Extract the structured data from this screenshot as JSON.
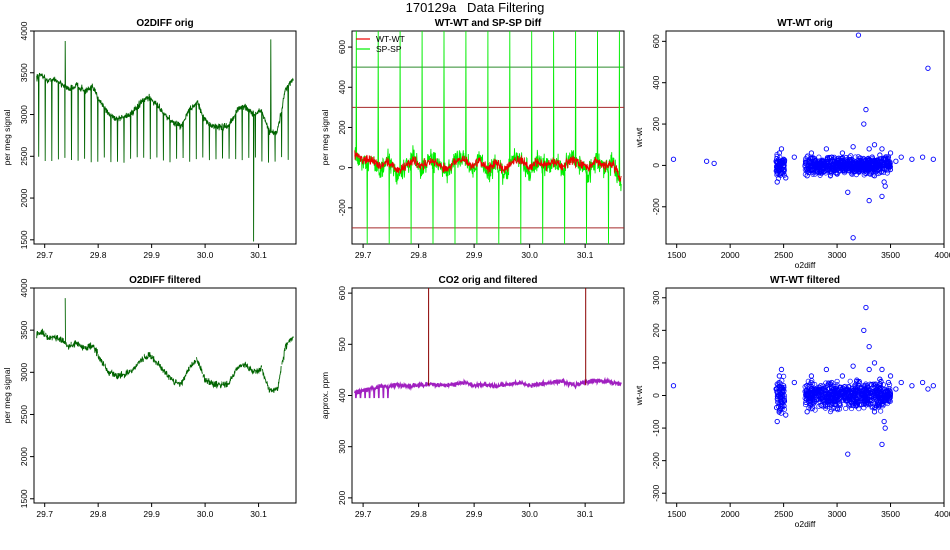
{
  "page": {
    "title": "170129a   Data Filtering"
  },
  "chart_data": [
    {
      "id": "p1",
      "type": "line",
      "title": "O2DIFF orig",
      "xlabel": "",
      "ylabel": "per meg signal",
      "xlim": [
        29.68,
        30.17
      ],
      "ylim": [
        1450,
        4000
      ],
      "xticks": [
        "29.7",
        "29.8",
        "29.9",
        "30.0",
        "30.1"
      ],
      "yticks": [
        "1500",
        "2000",
        "2500",
        "3000",
        "3500",
        "4000"
      ],
      "series": [
        {
          "color": "#006400",
          "x": [
            29.685,
            29.695,
            29.705,
            29.715,
            29.73,
            29.745,
            29.76,
            29.775,
            29.79,
            29.805,
            29.82,
            29.835,
            29.85,
            29.865,
            29.88,
            29.895,
            29.91,
            29.925,
            29.94,
            29.955,
            29.97,
            29.985,
            30.0,
            30.015,
            30.03,
            30.045,
            30.06,
            30.075,
            30.09,
            30.105,
            30.12,
            30.135,
            30.15,
            30.165
          ],
          "y": [
            3450,
            3480,
            3400,
            3420,
            3380,
            3300,
            3350,
            3280,
            3320,
            3150,
            3000,
            2950,
            2980,
            3020,
            3150,
            3200,
            3120,
            3000,
            2900,
            2860,
            3050,
            3150,
            2920,
            2860,
            2850,
            2870,
            3050,
            3100,
            3000,
            3050,
            2800,
            2780,
            3300,
            3420
          ]
        }
      ]
    },
    {
      "id": "p2",
      "type": "line",
      "title": "WT-WT and SP-SP Diff",
      "xlabel": "",
      "ylabel": "per meg signal",
      "xlim": [
        29.68,
        30.17
      ],
      "ylim": [
        -380,
        680
      ],
      "xticks": [
        "29.7",
        "29.8",
        "29.9",
        "30.0",
        "30.1"
      ],
      "yticks": [
        "-200",
        "0",
        "200",
        "400",
        "600"
      ],
      "legend": [
        "WT-WT",
        "SP-SP"
      ],
      "hlines": [
        {
          "y": 500,
          "color": "#2e8b2e"
        },
        {
          "y": 300,
          "color": "#a52a2a"
        },
        {
          "y": -300,
          "color": "#a52a2a"
        }
      ],
      "series": [
        {
          "name": "SP-SP",
          "color": "#00ee00",
          "x": [
            29.685,
            29.695,
            29.705,
            29.715,
            29.73,
            29.745,
            29.76,
            29.775,
            29.79,
            29.805,
            29.82,
            29.835,
            29.85,
            29.865,
            29.88,
            29.895,
            29.91,
            29.925,
            29.94,
            29.955,
            29.97,
            29.985,
            30.0,
            30.015,
            30.03,
            30.045,
            30.06,
            30.075,
            30.09,
            30.105,
            30.12,
            30.135,
            30.15,
            30.165
          ],
          "y": [
            60,
            30,
            10,
            60,
            -30,
            40,
            -40,
            -10,
            60,
            -20,
            50,
            20,
            -40,
            40,
            60,
            -10,
            50,
            -30,
            20,
            -50,
            50,
            40,
            -30,
            40,
            0,
            30,
            -20,
            60,
            20,
            -30,
            40,
            -10,
            30,
            -100
          ]
        },
        {
          "name": "WT-WT",
          "color": "#ee0000",
          "x": [
            29.685,
            29.695,
            29.705,
            29.715,
            29.73,
            29.745,
            29.76,
            29.775,
            29.79,
            29.805,
            29.82,
            29.835,
            29.85,
            29.865,
            29.88,
            29.895,
            29.91,
            29.925,
            29.94,
            29.955,
            29.97,
            29.985,
            30.0,
            30.015,
            30.03,
            30.045,
            30.06,
            30.075,
            30.09,
            30.105,
            30.12,
            30.135,
            30.15,
            30.165
          ],
          "y": [
            70,
            50,
            30,
            40,
            10,
            30,
            -10,
            0,
            40,
            10,
            30,
            20,
            -10,
            30,
            40,
            10,
            30,
            0,
            20,
            -10,
            40,
            30,
            0,
            30,
            10,
            30,
            0,
            40,
            20,
            0,
            30,
            10,
            20,
            -60
          ]
        }
      ]
    },
    {
      "id": "p3",
      "type": "scatter",
      "title": "WT-WT orig",
      "xlabel": "o2diff",
      "ylabel": "wt-wt",
      "xlim": [
        1400,
        4000
      ],
      "ylim": [
        -380,
        650
      ],
      "xticks": [
        "1500",
        "2000",
        "2500",
        "3000",
        "3500",
        "4000"
      ],
      "yticks": [
        "-200",
        "0",
        "200",
        "400",
        "600"
      ],
      "series": [
        {
          "color": "#0000ff",
          "x": [
            1470,
            1780,
            1850,
            2430,
            2440,
            2460,
            2470,
            2480,
            2500,
            2520,
            2600,
            2720,
            2760,
            2800,
            2850,
            2900,
            2950,
            3000,
            3050,
            3100,
            3150,
            3200,
            3250,
            3300,
            3350,
            3400,
            3420,
            3450,
            3480,
            3500,
            3550,
            3600,
            3700,
            3800,
            3850,
            3900,
            3200,
            3250,
            3270,
            3100,
            3150,
            3300,
            3350,
            3420,
            3440
          ],
          "y": [
            30,
            20,
            10,
            20,
            -80,
            60,
            -40,
            80,
            30,
            -60,
            40,
            -50,
            60,
            20,
            -30,
            80,
            40,
            -40,
            60,
            10,
            90,
            -20,
            30,
            80,
            -50,
            50,
            -150,
            -100,
            40,
            60,
            20,
            40,
            30,
            40,
            470,
            30,
            630,
            200,
            270,
            -130,
            -350,
            -170,
            100,
            80,
            -80
          ]
        }
      ]
    },
    {
      "id": "p4",
      "type": "line",
      "title": "O2DIFF filtered",
      "xlabel": "",
      "ylabel": "per meg signal",
      "xlim": [
        29.68,
        30.17
      ],
      "ylim": [
        1450,
        4000
      ],
      "xticks": [
        "29.7",
        "29.8",
        "29.9",
        "30.0",
        "30.1"
      ],
      "yticks": [
        "1500",
        "2000",
        "2500",
        "3000",
        "3500",
        "4000"
      ],
      "series": [
        {
          "color": "#006400",
          "x": [
            29.685,
            29.695,
            29.705,
            29.715,
            29.73,
            29.745,
            29.76,
            29.775,
            29.79,
            29.805,
            29.82,
            29.835,
            29.85,
            29.865,
            29.88,
            29.895,
            29.91,
            29.925,
            29.94,
            29.955,
            29.97,
            29.985,
            30.0,
            30.015,
            30.03,
            30.045,
            30.06,
            30.075,
            30.09,
            30.105,
            30.12,
            30.135,
            30.15,
            30.165
          ],
          "y": [
            3450,
            3480,
            3400,
            3420,
            3380,
            3300,
            3350,
            3280,
            3320,
            3150,
            3000,
            2950,
            2980,
            3020,
            3150,
            3200,
            3120,
            3000,
            2900,
            2860,
            3050,
            3150,
            2920,
            2860,
            2850,
            2870,
            3050,
            3100,
            3000,
            3050,
            2800,
            2780,
            3300,
            3420
          ]
        }
      ]
    },
    {
      "id": "p5",
      "type": "line",
      "title": "CO2 orig and filtered",
      "xlabel": "",
      "ylabel": "approx. ppm",
      "xlim": [
        29.68,
        30.17
      ],
      "ylim": [
        190,
        610
      ],
      "xticks": [
        "29.7",
        "29.8",
        "29.9",
        "30.0",
        "30.1"
      ],
      "yticks": [
        "200",
        "300",
        "400",
        "500",
        "600"
      ],
      "series": [
        {
          "color": "#a020c0",
          "x": [
            29.685,
            29.7,
            29.72,
            29.74,
            29.76,
            29.78,
            29.8,
            29.82,
            29.84,
            29.86,
            29.88,
            29.9,
            29.92,
            29.94,
            29.96,
            29.98,
            30.0,
            30.02,
            30.04,
            30.06,
            30.08,
            30.1,
            30.12,
            30.14,
            30.165
          ],
          "y": [
            405,
            410,
            415,
            418,
            420,
            418,
            420,
            422,
            420,
            422,
            425,
            420,
            422,
            418,
            422,
            425,
            420,
            422,
            425,
            428,
            420,
            425,
            430,
            428,
            422
          ]
        }
      ],
      "spikes": [
        {
          "x": 29.818,
          "y": 610
        },
        {
          "x": 30.101,
          "y": 610
        }
      ]
    },
    {
      "id": "p6",
      "type": "scatter",
      "title": "WT-WT filtered",
      "xlabel": "o2diff",
      "ylabel": "wt-wt",
      "xlim": [
        1400,
        4000
      ],
      "ylim": [
        -330,
        330
      ],
      "xticks": [
        "1500",
        "2000",
        "2500",
        "3000",
        "3500",
        "4000"
      ],
      "yticks": [
        "-300",
        "-200",
        "-100",
        "0",
        "100",
        "200",
        "300"
      ],
      "series": [
        {
          "color": "#0000ff",
          "x": [
            1470,
            2430,
            2440,
            2460,
            2470,
            2480,
            2500,
            2520,
            2600,
            2720,
            2760,
            2800,
            2850,
            2900,
            2950,
            3000,
            3050,
            3100,
            3150,
            3200,
            3250,
            3300,
            3350,
            3400,
            3420,
            3450,
            3480,
            3500,
            3550,
            3600,
            3700,
            3800,
            3850,
            3900,
            3250,
            3270,
            3100,
            3300,
            3350,
            3420,
            3440
          ],
          "y": [
            30,
            20,
            -80,
            60,
            -40,
            80,
            30,
            -60,
            40,
            -50,
            60,
            20,
            -30,
            80,
            40,
            -40,
            60,
            10,
            90,
            -20,
            30,
            80,
            -50,
            50,
            -150,
            -100,
            40,
            60,
            20,
            40,
            30,
            40,
            20,
            30,
            200,
            270,
            -180,
            150,
            100,
            80,
            -80
          ]
        }
      ]
    }
  ]
}
